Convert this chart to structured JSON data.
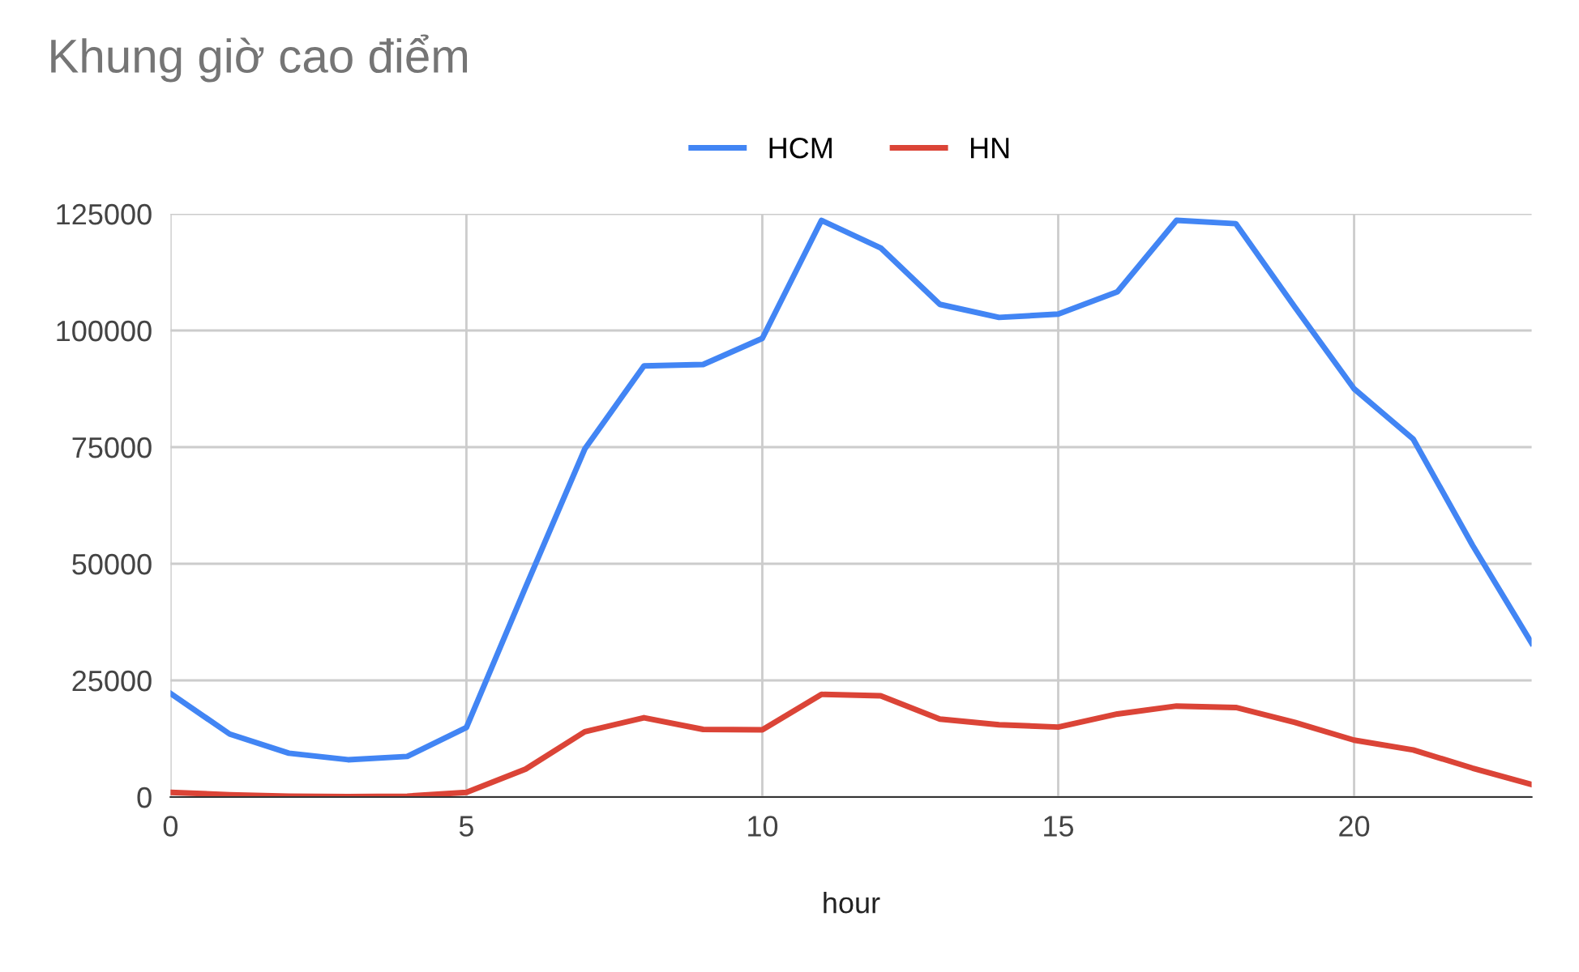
{
  "chart_data": {
    "type": "line",
    "title": "Khung giờ cao điểm",
    "xlabel": "hour",
    "x": [
      0,
      1,
      2,
      3,
      4,
      5,
      6,
      7,
      8,
      9,
      10,
      11,
      12,
      13,
      14,
      15,
      16,
      17,
      18,
      19,
      20,
      21,
      22,
      23
    ],
    "series": [
      {
        "name": "HCM",
        "color": "#4285f4",
        "values": [
          22200,
          13500,
          9400,
          8000,
          8700,
          14900,
          45000,
          74600,
          92400,
          92700,
          98300,
          123600,
          117700,
          105600,
          102800,
          103500,
          108300,
          123600,
          122900,
          105000,
          87500,
          76700,
          54000,
          33000
        ]
      },
      {
        "name": "HN",
        "color": "#db4437",
        "values": [
          1000,
          500,
          200,
          100,
          200,
          1000,
          6000,
          14000,
          17000,
          14500,
          14400,
          22000,
          21700,
          16700,
          15500,
          15000,
          17800,
          19500,
          19200,
          16000,
          12200,
          10100,
          6200,
          2700
        ]
      }
    ],
    "xlim": [
      0,
      23
    ],
    "xticks": [
      0,
      5,
      10,
      15,
      20
    ],
    "ylim": [
      0,
      125000
    ],
    "yticks": [
      0,
      25000,
      50000,
      75000,
      100000,
      125000
    ],
    "grid": true,
    "legend": "top",
    "marker": "none",
    "line_style": "solid"
  }
}
